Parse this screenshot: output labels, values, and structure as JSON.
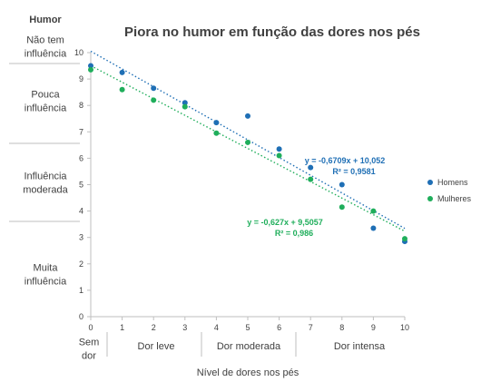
{
  "chart_data": {
    "type": "scatter",
    "title": "Piora no humor em função das dores nos pés",
    "ylabel": "Humor",
    "xlabel": "Nível de dores nos pés",
    "xlim": [
      0,
      10
    ],
    "ylim": [
      0,
      10
    ],
    "x_ticks": [
      "0",
      "1",
      "2",
      "3",
      "4",
      "5",
      "6",
      "7",
      "8",
      "9",
      "10"
    ],
    "y_ticks": [
      "0",
      "1",
      "2",
      "3",
      "4",
      "5",
      "6",
      "7",
      "8",
      "9",
      "10"
    ],
    "y_bands": [
      {
        "label": "Não tem influência",
        "lines": [
          "Não tem",
          "influência"
        ]
      },
      {
        "label": "Pouca influência",
        "lines": [
          "Pouca",
          "influência"
        ]
      },
      {
        "label": "Influência moderada",
        "lines": [
          "Influência",
          "moderada"
        ]
      },
      {
        "label": "Muita influência",
        "lines": [
          "Muita",
          "influência"
        ]
      }
    ],
    "x_categories": [
      {
        "label": "Sem dor",
        "lines": [
          "Sem",
          "dor"
        ]
      },
      {
        "label": "Dor leve",
        "lines": [
          "Dor leve"
        ]
      },
      {
        "label": "Dor moderada",
        "lines": [
          "Dor moderada"
        ]
      },
      {
        "label": "Dor intensa",
        "lines": [
          "Dor intensa"
        ]
      }
    ],
    "grid": false,
    "legend_position": "right",
    "series": [
      {
        "name": "Homens",
        "color": "#1f6fb5",
        "points": [
          [
            0,
            9.5
          ],
          [
            1,
            9.25
          ],
          [
            2,
            8.65
          ],
          [
            3,
            8.1
          ],
          [
            4,
            7.35
          ],
          [
            5,
            7.6
          ],
          [
            6,
            6.35
          ],
          [
            7,
            5.65
          ],
          [
            8,
            5.0
          ],
          [
            9,
            3.35
          ],
          [
            10,
            2.85
          ]
        ],
        "trendline": {
          "slope": -0.6709,
          "intercept": 10.052,
          "equation": "y = -0,6709x + 10,052",
          "r2": "R² = 0,9581"
        }
      },
      {
        "name": "Mulheres",
        "color": "#1fae5b",
        "points": [
          [
            0,
            9.35
          ],
          [
            1,
            8.6
          ],
          [
            2,
            8.2
          ],
          [
            3,
            7.95
          ],
          [
            4,
            6.95
          ],
          [
            5,
            6.6
          ],
          [
            6,
            6.1
          ],
          [
            7,
            5.2
          ],
          [
            8,
            4.15
          ],
          [
            9,
            4.0
          ],
          [
            10,
            2.95
          ]
        ],
        "trendline": {
          "slope": -0.627,
          "intercept": 9.5057,
          "equation": "y = -0,627x + 9,5057",
          "r2": "R² = 0,986"
        }
      }
    ]
  }
}
